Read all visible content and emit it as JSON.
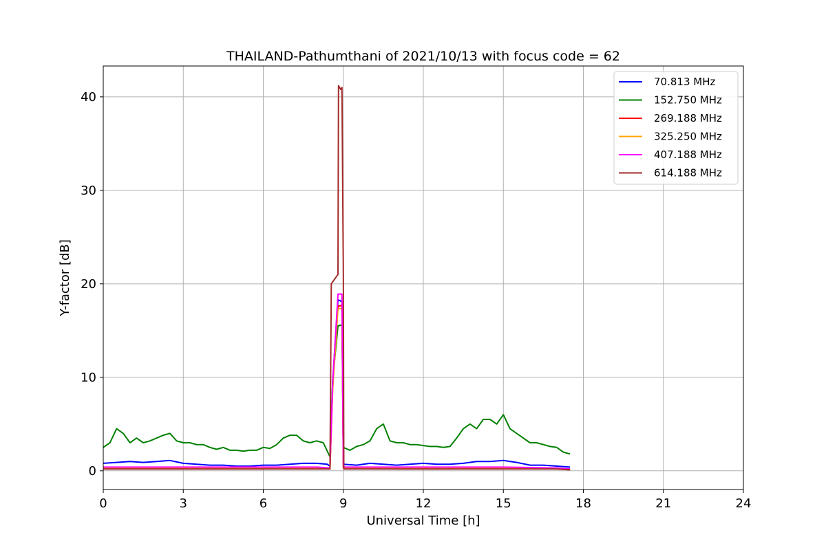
{
  "chart_data": {
    "type": "line",
    "title": "THAILAND-Pathumthani of 2021/10/13 with focus code = 62",
    "xlabel": "Universal Time [h]",
    "ylabel": "Y-factor [dB]",
    "xlim": [
      0,
      24
    ],
    "ylim": [
      -2,
      43.3
    ],
    "x_ticks": [
      "0",
      "3",
      "6",
      "9",
      "12",
      "15",
      "18",
      "21",
      "24"
    ],
    "y_ticks": [
      "0",
      "10",
      "20",
      "30",
      "40"
    ],
    "grid": true,
    "legend_position": "top-right",
    "series": [
      {
        "name": " 70.813 MHz",
        "color": "#0000ff",
        "x": [
          0,
          0.5,
          1,
          1.5,
          2,
          2.5,
          3,
          3.5,
          4,
          4.5,
          5,
          5.5,
          6,
          6.5,
          7,
          7.5,
          8,
          8.4,
          8.5,
          8.6,
          8.8,
          8.95,
          9,
          9.5,
          10,
          10.5,
          11,
          11.5,
          12,
          12.5,
          13,
          13.5,
          14,
          14.5,
          15,
          15.5,
          16,
          16.5,
          17,
          17.5
        ],
        "y": [
          0.8,
          0.9,
          1.0,
          0.9,
          1.0,
          1.1,
          0.8,
          0.7,
          0.6,
          0.6,
          0.5,
          0.5,
          0.6,
          0.6,
          0.7,
          0.8,
          0.8,
          0.7,
          0.5,
          9.6,
          18.3,
          18.1,
          0.7,
          0.6,
          0.8,
          0.7,
          0.6,
          0.7,
          0.8,
          0.7,
          0.7,
          0.8,
          1.0,
          1.0,
          1.1,
          0.9,
          0.6,
          0.6,
          0.5,
          0.4
        ]
      },
      {
        "name": "152.750 MHz",
        "color": "#008000",
        "x": [
          0,
          0.25,
          0.5,
          0.75,
          1,
          1.25,
          1.5,
          1.75,
          2,
          2.25,
          2.5,
          2.75,
          3,
          3.25,
          3.5,
          3.75,
          4,
          4.25,
          4.5,
          4.75,
          5,
          5.25,
          5.5,
          5.75,
          6,
          6.25,
          6.5,
          6.75,
          7,
          7.25,
          7.5,
          7.75,
          8,
          8.25,
          8.5,
          8.6,
          8.8,
          8.95,
          9,
          9.25,
          9.5,
          9.75,
          10,
          10.25,
          10.5,
          10.75,
          11,
          11.25,
          11.5,
          11.75,
          12,
          12.25,
          12.5,
          12.75,
          13,
          13.25,
          13.5,
          13.75,
          14,
          14.25,
          14.5,
          14.75,
          15,
          15.25,
          15.5,
          15.75,
          16,
          16.25,
          16.5,
          16.75,
          17,
          17.25,
          17.5
        ],
        "y": [
          2.5,
          3.0,
          4.5,
          4.0,
          3.0,
          3.5,
          3.0,
          3.2,
          3.5,
          3.8,
          4.0,
          3.2,
          3.0,
          3.0,
          2.8,
          2.8,
          2.5,
          2.3,
          2.5,
          2.2,
          2.2,
          2.1,
          2.2,
          2.2,
          2.5,
          2.4,
          2.8,
          3.5,
          3.8,
          3.8,
          3.2,
          3.0,
          3.2,
          3.0,
          1.5,
          9.7,
          15.5,
          15.6,
          2.5,
          2.2,
          2.6,
          2.8,
          3.2,
          4.5,
          5.0,
          3.2,
          3.0,
          3.0,
          2.8,
          2.8,
          2.7,
          2.6,
          2.6,
          2.5,
          2.6,
          3.5,
          4.5,
          5.0,
          4.5,
          5.5,
          5.5,
          5.0,
          6.0,
          4.5,
          4.0,
          3.5,
          3.0,
          3.0,
          2.8,
          2.6,
          2.5,
          2.0,
          1.8
        ]
      },
      {
        "name": "269.188 MHz",
        "color": "#ff0000",
        "x": [
          0,
          2,
          4,
          6,
          8,
          8.5,
          8.6,
          8.8,
          8.95,
          9,
          11,
          13,
          15,
          17,
          17.5
        ],
        "y": [
          0.2,
          0.2,
          0.2,
          0.2,
          0.3,
          0.2,
          8.8,
          17.6,
          17.7,
          0.3,
          0.2,
          0.2,
          0.3,
          0.2,
          0.1
        ]
      },
      {
        "name": "325.250 MHz",
        "color": "#ffa500",
        "x": [
          0,
          2,
          4,
          6,
          8,
          8.5,
          8.6,
          8.8,
          8.95,
          9,
          11,
          13,
          15,
          17,
          17.5
        ],
        "y": [
          0.3,
          0.3,
          0.3,
          0.3,
          0.3,
          0.2,
          8.7,
          17.3,
          17.4,
          0.3,
          0.3,
          0.3,
          0.3,
          0.2,
          0.1
        ]
      },
      {
        "name": "407.188 MHz",
        "color": "#ff00ff",
        "x": [
          0,
          2,
          4,
          6,
          8,
          8.5,
          8.6,
          8.8,
          8.95,
          9,
          11,
          13,
          15,
          17,
          17.5
        ],
        "y": [
          0.4,
          0.4,
          0.4,
          0.4,
          0.4,
          0.3,
          9.4,
          18.9,
          18.9,
          0.4,
          0.4,
          0.4,
          0.4,
          0.3,
          0.2
        ]
      },
      {
        "name": "614.188 MHz",
        "color": "#a52a2a",
        "x": [
          0,
          2,
          4,
          6,
          8,
          8.5,
          8.55,
          8.8,
          8.82,
          8.9,
          8.95,
          9.0,
          9.02,
          11,
          13,
          15,
          17,
          17.5
        ],
        "y": [
          0.2,
          0.2,
          0.2,
          0.2,
          0.2,
          0.2,
          20.0,
          21.0,
          41.2,
          40.8,
          41.0,
          21.0,
          0.2,
          0.2,
          0.2,
          0.2,
          0.2,
          0.1
        ]
      }
    ]
  }
}
